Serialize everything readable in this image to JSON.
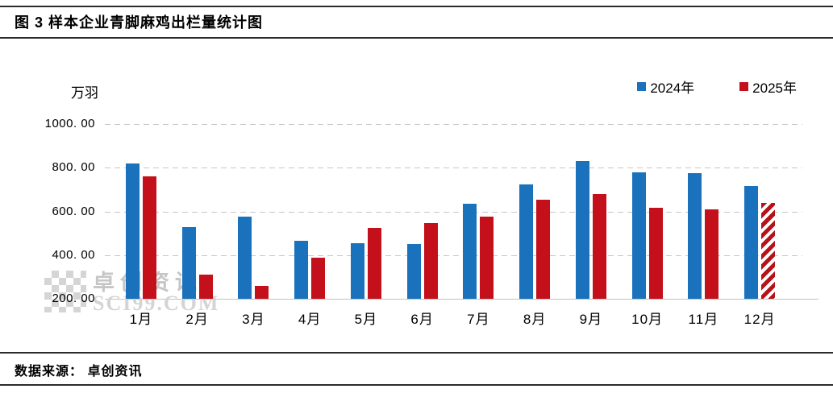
{
  "header": {
    "title": "图 3 样本企业青脚麻鸡出栏量统计图"
  },
  "footer": {
    "source_label": "数据来源： 卓创资讯"
  },
  "watermark": {
    "logo": "sci99-pixel-logo",
    "line1": "卓创资讯",
    "line2": "SCI99.COM"
  },
  "chart_data": {
    "type": "bar",
    "title": "样本企业青脚麻鸡出栏量统计图",
    "unit_label": "万羽",
    "categories": [
      "1月",
      "2月",
      "3月",
      "4月",
      "5月",
      "6月",
      "7月",
      "8月",
      "9月",
      "10月",
      "11月",
      "12月"
    ],
    "series": [
      {
        "name": "2024年",
        "color": "#1b72bc",
        "values": [
          820,
          530,
          575,
          465,
          455,
          450,
          635,
          725,
          830,
          780,
          775,
          715
        ]
      },
      {
        "name": "2025年",
        "color": "#c3101a",
        "values": [
          760,
          310,
          260,
          390,
          525,
          545,
          575,
          655,
          680,
          615,
          610,
          640
        ],
        "forecast_index": 11,
        "forecast_style": "red-white-diagonal-hatch"
      }
    ],
    "ylim": [
      200,
      1000
    ],
    "yticks": [
      1000,
      800,
      600,
      400,
      200
    ],
    "ytick_labels": [
      "1000. 00",
      "800. 00",
      "600. 00",
      "400. 00",
      "200. 00"
    ],
    "grid": "dashed-horizontal",
    "legend_position": "top-right",
    "xlabel": "",
    "ylabel": "万羽"
  }
}
